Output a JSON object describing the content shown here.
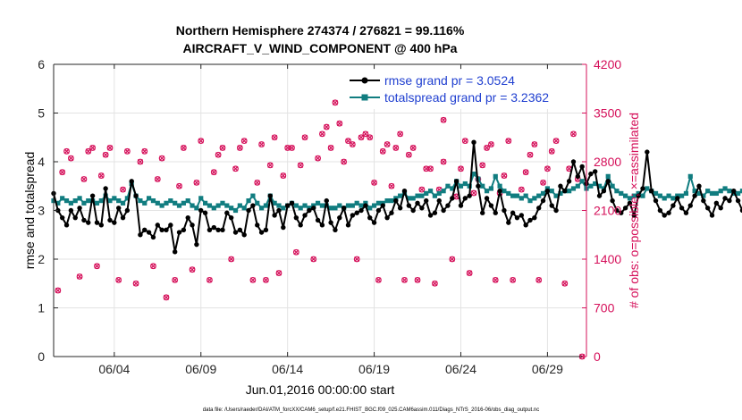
{
  "colors": {
    "rmse": "#000000",
    "totalspread": "#117d80",
    "obs": "#d5105a",
    "legend_text": "#1f3fd0",
    "axis": "#262626",
    "grid": "#e3e3e3"
  },
  "chart_data": {
    "type": "line",
    "title": "Northern Hemisphere 274374 / 276821 = 99.116%",
    "subtitle": "AIRCRAFT_V_WIND_COMPONENT @ 400 hPa",
    "xlabel": "Jun.01,2016 00:00:00 start",
    "ylabel_left": "rmse and totalspread",
    "ylabel_right": "# of obs: o=possible; ×=assimilated",
    "xlim": [
      0.5,
      31.25
    ],
    "ylim_left": [
      0,
      6
    ],
    "ylim_right": [
      0,
      4200
    ],
    "xticks": [
      {
        "x": 4,
        "label": "06/04"
      },
      {
        "x": 9,
        "label": "06/09"
      },
      {
        "x": 14,
        "label": "06/14"
      },
      {
        "x": 19,
        "label": "06/19"
      },
      {
        "x": 24,
        "label": "06/24"
      },
      {
        "x": 29,
        "label": "06/29"
      }
    ],
    "yticks_left": [
      "0",
      "1",
      "2",
      "3",
      "4",
      "5",
      "6"
    ],
    "yticks_right": [
      "0",
      "700",
      "1400",
      "2100",
      "2800",
      "3500",
      "4200"
    ],
    "legend": {
      "placement": "top-right",
      "entries": [
        "rmse grand pr = 3.0524",
        "totalspread grand pr = 3.2362"
      ]
    },
    "series": [
      {
        "name": "rmse",
        "start": 0.5,
        "step": 0.25,
        "values": [
          3.35,
          3.0,
          2.85,
          2.7,
          3.0,
          2.85,
          3.05,
          2.8,
          2.75,
          3.3,
          2.75,
          2.7,
          3.45,
          2.8,
          2.75,
          3.05,
          2.85,
          3.0,
          3.6,
          3.3,
          2.5,
          2.6,
          2.55,
          2.45,
          2.7,
          2.6,
          2.6,
          2.7,
          2.15,
          2.55,
          2.6,
          2.85,
          2.7,
          2.3,
          3.0,
          2.95,
          2.6,
          2.65,
          2.6,
          2.6,
          2.95,
          2.85,
          2.55,
          2.6,
          2.5,
          3.0,
          3.1,
          2.7,
          2.55,
          2.6,
          3.3,
          2.9,
          3.0,
          2.65,
          3.1,
          3.15,
          2.85,
          2.7,
          2.9,
          3.0,
          3.05,
          2.8,
          2.7,
          3.2,
          2.75,
          2.6,
          2.85,
          3.05,
          2.7,
          2.9,
          2.95,
          3.0,
          3.1,
          2.85,
          2.75,
          3.0,
          3.1,
          2.85,
          2.95,
          3.2,
          3.05,
          3.4,
          3.1,
          3.0,
          3.15,
          3.05,
          3.2,
          2.9,
          2.95,
          3.2,
          3.0,
          3.1,
          3.25,
          3.6,
          3.1,
          3.25,
          3.3,
          4.4,
          3.5,
          2.95,
          3.25,
          3.1,
          2.95,
          3.4,
          3.0,
          2.75,
          2.95,
          2.85,
          2.9,
          2.7,
          2.8,
          2.85,
          3.05,
          3.2,
          3.4,
          3.1,
          3.0,
          3.5,
          3.4,
          3.6,
          4.0,
          3.7,
          3.9,
          3.55,
          3.75,
          3.8,
          3.3,
          3.4,
          3.6,
          3.2,
          3.0,
          2.95,
          3.05,
          3.15,
          2.9,
          3.3,
          3.45,
          4.2,
          3.4,
          3.2,
          3.0,
          2.9,
          2.95,
          3.1,
          3.25,
          3.05,
          2.95,
          3.1,
          3.3,
          3.5,
          3.2,
          3.05,
          2.9,
          3.15,
          3.05,
          3.25,
          3.2,
          3.4,
          3.2,
          3.0,
          3.4,
          3.1,
          3.25,
          2.7,
          2.65,
          3.0,
          2.9,
          3.05,
          2.75,
          3.1,
          3.2,
          2.85,
          2.75,
          2.8,
          3.2,
          3.1,
          3.05
        ]
      },
      {
        "name": "totalspread",
        "start": 0.5,
        "step": 0.25,
        "values": [
          3.2,
          3.15,
          3.25,
          3.2,
          3.15,
          3.2,
          3.25,
          3.15,
          3.2,
          3.2,
          3.15,
          3.2,
          3.3,
          3.2,
          3.25,
          3.2,
          3.15,
          3.25,
          3.55,
          3.3,
          3.2,
          3.15,
          3.25,
          3.2,
          3.15,
          3.1,
          3.15,
          3.2,
          3.15,
          3.1,
          3.15,
          3.2,
          3.1,
          3.05,
          3.25,
          3.15,
          3.1,
          3.05,
          3.1,
          3.15,
          3.1,
          3.05,
          3.0,
          3.1,
          3.05,
          3.2,
          3.3,
          3.15,
          3.05,
          3.1,
          3.3,
          3.15,
          3.1,
          3.05,
          3.1,
          3.15,
          3.1,
          3.05,
          3.1,
          3.05,
          3.1,
          3.15,
          3.1,
          3.1,
          3.05,
          3.05,
          3.1,
          3.05,
          3.1,
          3.1,
          3.15,
          3.1,
          3.15,
          3.05,
          3.1,
          3.15,
          3.15,
          3.2,
          3.2,
          3.25,
          3.3,
          3.35,
          3.25,
          3.25,
          3.3,
          3.3,
          3.35,
          3.4,
          3.3,
          3.35,
          3.4,
          3.5,
          3.45,
          3.6,
          3.5,
          3.55,
          3.5,
          3.75,
          3.65,
          3.5,
          3.4,
          3.45,
          3.7,
          3.5,
          3.4,
          3.35,
          3.3,
          3.3,
          3.25,
          3.3,
          3.2,
          3.25,
          3.3,
          3.35,
          3.45,
          3.4,
          3.3,
          3.35,
          3.4,
          3.4,
          3.45,
          3.5,
          3.6,
          3.45,
          3.5,
          3.55,
          3.5,
          3.45,
          3.7,
          3.5,
          3.4,
          3.35,
          3.3,
          3.25,
          3.3,
          3.35,
          3.3,
          3.45,
          3.4,
          3.35,
          3.3,
          3.25,
          3.3,
          3.25,
          3.3,
          3.3,
          3.35,
          3.7,
          3.4,
          3.35,
          3.3,
          3.4,
          3.35,
          3.35,
          3.4,
          3.45,
          3.4,
          3.35,
          3.35,
          3.4,
          3.4,
          3.55,
          3.45,
          3.35,
          3.3,
          3.25,
          3.3,
          3.25,
          3.3,
          3.25,
          3.3,
          3.35,
          3.3,
          3.25,
          3.2,
          3.25,
          3.3,
          3.2,
          3.25
        ]
      },
      {
        "name": "obs_possible",
        "axis": "right",
        "points": [
          [
            0.75,
            950
          ],
          [
            1,
            2650
          ],
          [
            1.25,
            2950
          ],
          [
            1.5,
            2850
          ],
          [
            2,
            1150
          ],
          [
            2.25,
            2550
          ],
          [
            2.5,
            2950
          ],
          [
            2.75,
            3000
          ],
          [
            3,
            1300
          ],
          [
            3.25,
            2600
          ],
          [
            3.5,
            2900
          ],
          [
            3.75,
            3000
          ],
          [
            4.25,
            1100
          ],
          [
            4.5,
            2400
          ],
          [
            4.75,
            2950
          ],
          [
            5.25,
            1050
          ],
          [
            5.5,
            2800
          ],
          [
            5.75,
            2950
          ],
          [
            6.25,
            1300
          ],
          [
            6.5,
            2550
          ],
          [
            6.75,
            2850
          ],
          [
            7,
            850
          ],
          [
            7.5,
            1100
          ],
          [
            7.75,
            2450
          ],
          [
            8,
            3000
          ],
          [
            8.5,
            1250
          ],
          [
            8.75,
            2500
          ],
          [
            9,
            3100
          ],
          [
            9.5,
            1100
          ],
          [
            9.75,
            2650
          ],
          [
            10,
            2900
          ],
          [
            10.25,
            3000
          ],
          [
            10.75,
            1400
          ],
          [
            11,
            2700
          ],
          [
            11.25,
            3000
          ],
          [
            11.5,
            3100
          ],
          [
            12,
            1100
          ],
          [
            12.25,
            2500
          ],
          [
            12.5,
            3050
          ],
          [
            12.75,
            1100
          ],
          [
            13,
            2750
          ],
          [
            13.25,
            3150
          ],
          [
            13.5,
            1200
          ],
          [
            13.75,
            2600
          ],
          [
            14,
            3000
          ],
          [
            14.25,
            3000
          ],
          [
            14.5,
            1500
          ],
          [
            14.75,
            2750
          ],
          [
            15,
            3150
          ],
          [
            15.5,
            1400
          ],
          [
            15.75,
            2850
          ],
          [
            16,
            3200
          ],
          [
            16.25,
            3300
          ],
          [
            16.5,
            3000
          ],
          [
            16.75,
            3650
          ],
          [
            17,
            3350
          ],
          [
            17.25,
            2800
          ],
          [
            17.5,
            3100
          ],
          [
            17.75,
            3050
          ],
          [
            18,
            1400
          ],
          [
            18.25,
            3150
          ],
          [
            18.5,
            3200
          ],
          [
            18.75,
            3150
          ],
          [
            19,
            2500
          ],
          [
            19.25,
            1100
          ],
          [
            19.5,
            2950
          ],
          [
            19.75,
            3050
          ],
          [
            20,
            2450
          ],
          [
            20.25,
            3000
          ],
          [
            20.5,
            3200
          ],
          [
            20.75,
            1100
          ],
          [
            21,
            2900
          ],
          [
            21.25,
            3000
          ],
          [
            21.5,
            1100
          ],
          [
            21.75,
            2400
          ],
          [
            22,
            2700
          ],
          [
            22.25,
            2700
          ],
          [
            22.5,
            1050
          ],
          [
            22.75,
            2400
          ],
          [
            23,
            2800
          ],
          [
            23,
            3400
          ],
          [
            23.5,
            1400
          ],
          [
            23.75,
            2300
          ],
          [
            24,
            2700
          ],
          [
            24.25,
            3100
          ],
          [
            24.5,
            1200
          ],
          [
            24.75,
            2350
          ],
          [
            25,
            2550
          ],
          [
            25.25,
            2750
          ],
          [
            25.5,
            3000
          ],
          [
            25.75,
            3050
          ],
          [
            26,
            1100
          ],
          [
            26.25,
            2350
          ],
          [
            26.5,
            2600
          ],
          [
            26.75,
            3100
          ],
          [
            27,
            1100
          ],
          [
            27.5,
            2400
          ],
          [
            27.75,
            2650
          ],
          [
            28,
            2900
          ],
          [
            28.25,
            3050
          ],
          [
            28.5,
            1100
          ],
          [
            28.75,
            2500
          ],
          [
            29,
            2700
          ],
          [
            29.25,
            2950
          ],
          [
            29.5,
            3100
          ],
          [
            30,
            1050
          ],
          [
            30.25,
            2700
          ],
          [
            30.5,
            3200
          ],
          [
            30.75,
            2550
          ],
          [
            31,
            0
          ]
        ]
      }
    ]
  },
  "footer": {
    "text": "data file: /Users/raeder/DAI/ATM_forcXX/CAM6_setup/f.e21.FHIST_BGC.f09_025.CAM6assim.011/Diags_NTrS_2016-06/obs_diag_output.nc"
  }
}
